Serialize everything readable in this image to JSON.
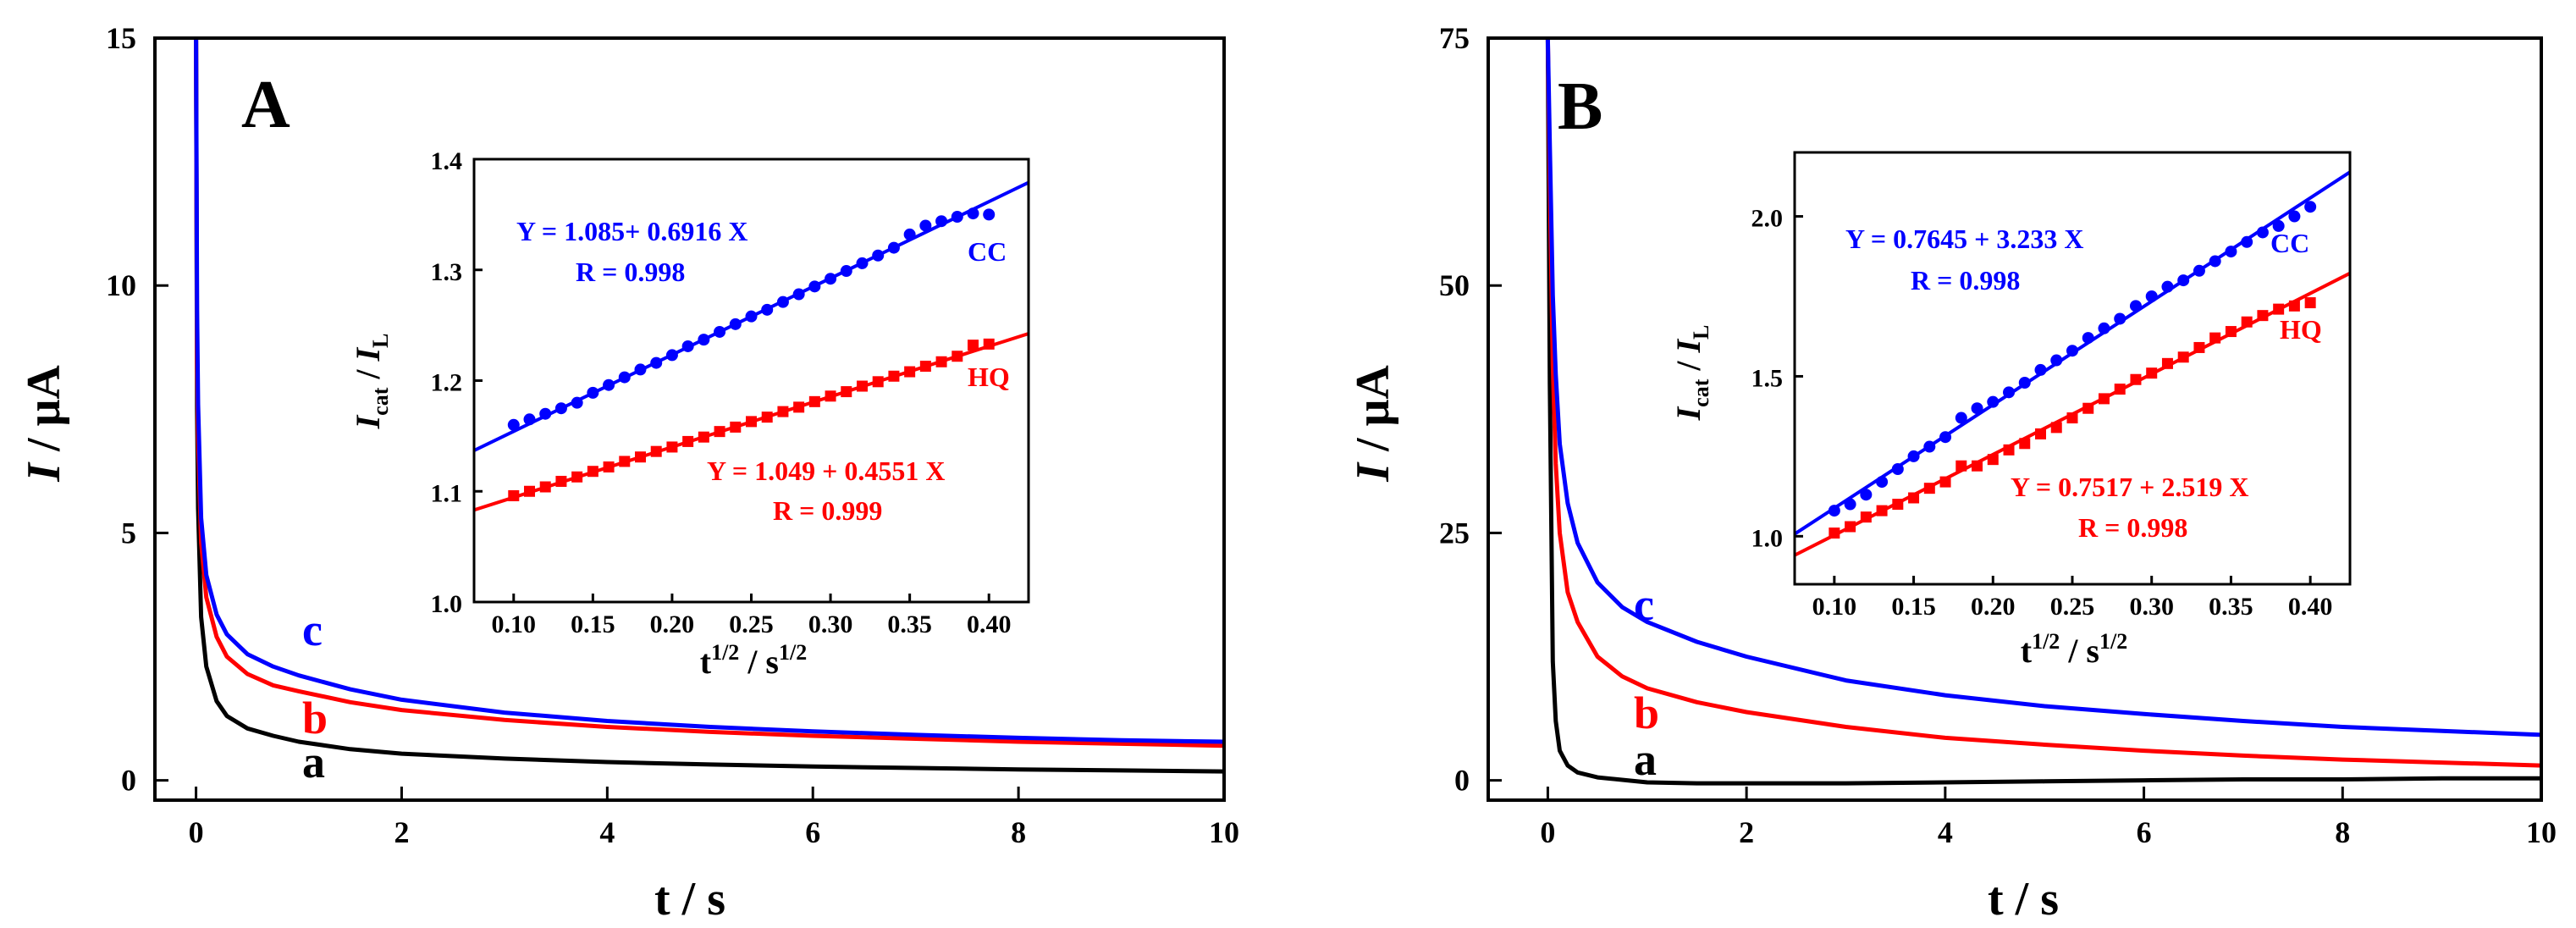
{
  "colors": {
    "a": "#000000",
    "b": "#ff0000",
    "c": "#0000ff",
    "axis": "#000000",
    "CC": "#0000ff",
    "HQ": "#ff0000"
  },
  "chart_data": [
    {
      "panel": "A",
      "type": "line",
      "xlabel": "t / s",
      "ylabel_i": "I",
      "ylabel_rest": " / μA",
      "xlim": [
        -0.4,
        10
      ],
      "ylim": [
        -0.4,
        15
      ],
      "xticks": [
        0,
        2,
        4,
        6,
        8,
        10
      ],
      "xtick_labels": [
        "0",
        "2",
        "4",
        "6",
        "8",
        "10"
      ],
      "yticks": [
        0,
        5,
        10,
        15
      ],
      "ytick_labels": [
        "0",
        "5",
        "10",
        "15"
      ],
      "series": [
        {
          "name": "a",
          "label": "a",
          "x": [
            0.0,
            0.01,
            0.02,
            0.05,
            0.1,
            0.2,
            0.3,
            0.5,
            0.75,
            1,
            1.5,
            2,
            3,
            4,
            5,
            6,
            7,
            8,
            9,
            10
          ],
          "y": [
            15,
            7.5,
            5.5,
            3.3,
            2.3,
            1.6,
            1.3,
            1.05,
            0.9,
            0.78,
            0.63,
            0.54,
            0.44,
            0.37,
            0.32,
            0.28,
            0.25,
            0.22,
            0.2,
            0.18
          ]
        },
        {
          "name": "b",
          "label": "b",
          "x": [
            0.0,
            0.01,
            0.02,
            0.05,
            0.1,
            0.2,
            0.3,
            0.5,
            0.75,
            1,
            1.5,
            2,
            3,
            4,
            5,
            6,
            7,
            8,
            9,
            10
          ],
          "y": [
            15,
            8.5,
            6.9,
            4.8,
            3.7,
            2.9,
            2.5,
            2.15,
            1.92,
            1.8,
            1.58,
            1.42,
            1.22,
            1.08,
            0.98,
            0.9,
            0.84,
            0.78,
            0.74,
            0.7
          ]
        },
        {
          "name": "c",
          "label": "c",
          "x": [
            0.0,
            0.01,
            0.02,
            0.05,
            0.1,
            0.2,
            0.3,
            0.5,
            0.75,
            1,
            1.5,
            2,
            3,
            4,
            5,
            6,
            7,
            8,
            9,
            10
          ],
          "y": [
            15,
            9.5,
            7.6,
            5.3,
            4.15,
            3.35,
            2.95,
            2.55,
            2.3,
            2.12,
            1.84,
            1.63,
            1.37,
            1.2,
            1.08,
            0.99,
            0.92,
            0.86,
            0.81,
            0.78
          ]
        }
      ],
      "inset": {
        "type": "scatter",
        "xlabel_base": "t",
        "xlabel_sup1": "1/2",
        "xlabel_mid": " / s",
        "xlabel_sup2": "1/2",
        "ylabel_main": "I",
        "ylabel_sub1": "cat",
        "ylabel_sep": " / ",
        "ylabel_sub2": "L",
        "xlim": [
          0.075,
          0.425
        ],
        "ylim": [
          1.0,
          1.4
        ],
        "xticks": [
          0.1,
          0.15,
          0.2,
          0.25,
          0.3,
          0.35,
          0.4
        ],
        "xtick_labels": [
          "0.10",
          "0.15",
          "0.20",
          "0.25",
          "0.30",
          "0.35",
          "0.40"
        ],
        "yticks": [
          1.0,
          1.1,
          1.2,
          1.3,
          1.4
        ],
        "ytick_labels": [
          "1.0",
          "1.1",
          "1.2",
          "1.3",
          "1.4"
        ],
        "series": [
          {
            "name": "CC",
            "label": "CC",
            "marker": "circle",
            "x": [
              0.1,
              0.11,
              0.12,
              0.13,
              0.14,
              0.15,
              0.16,
              0.17,
              0.18,
              0.19,
              0.2,
              0.21,
              0.22,
              0.23,
              0.24,
              0.25,
              0.26,
              0.27,
              0.28,
              0.29,
              0.3,
              0.31,
              0.32,
              0.33,
              0.34,
              0.35,
              0.36,
              0.37,
              0.38,
              0.39,
              0.4
            ],
            "y": [
              1.16,
              1.165,
              1.17,
              1.175,
              1.18,
              1.189,
              1.196,
              1.203,
              1.21,
              1.216,
              1.223,
              1.231,
              1.237,
              1.244,
              1.251,
              1.258,
              1.264,
              1.271,
              1.278,
              1.285,
              1.292,
              1.299,
              1.306,
              1.313,
              1.32,
              1.332,
              1.34,
              1.344,
              1.348,
              1.351,
              1.35
            ],
            "fit_intercept": 1.085,
            "fit_slope": 0.6916,
            "equation": "Y = 1.085+ 0.6916 X",
            "r": "R = 0.998"
          },
          {
            "name": "HQ",
            "label": "HQ",
            "marker": "square",
            "x": [
              0.1,
              0.11,
              0.12,
              0.13,
              0.14,
              0.15,
              0.16,
              0.17,
              0.18,
              0.19,
              0.2,
              0.21,
              0.22,
              0.23,
              0.24,
              0.25,
              0.26,
              0.27,
              0.28,
              0.29,
              0.3,
              0.31,
              0.32,
              0.33,
              0.34,
              0.35,
              0.36,
              0.37,
              0.38,
              0.39,
              0.4
            ],
            "y": [
              1.096,
              1.1,
              1.104,
              1.109,
              1.113,
              1.118,
              1.122,
              1.127,
              1.131,
              1.136,
              1.14,
              1.145,
              1.149,
              1.154,
              1.158,
              1.163,
              1.167,
              1.172,
              1.176,
              1.181,
              1.186,
              1.19,
              1.195,
              1.199,
              1.204,
              1.208,
              1.213,
              1.217,
              1.222,
              1.232,
              1.233
            ],
            "fit_intercept": 1.049,
            "fit_slope": 0.4551,
            "equation": "Y = 1.049 + 0.4551 X",
            "r": "R = 0.999"
          }
        ]
      }
    },
    {
      "panel": "B",
      "type": "line",
      "xlabel": "t / s",
      "ylabel_i": "I",
      "ylabel_rest": " / μA",
      "xlim": [
        -0.6,
        10
      ],
      "ylim": [
        -2,
        75
      ],
      "xticks": [
        0,
        2,
        4,
        6,
        8,
        10
      ],
      "xtick_labels": [
        "0",
        "2",
        "4",
        "6",
        "8",
        "10"
      ],
      "yticks": [
        0,
        25,
        50,
        75
      ],
      "ytick_labels": [
        "0",
        "25",
        "50",
        "75"
      ],
      "series": [
        {
          "name": "a",
          "label": "a",
          "x": [
            0.0,
            0.02,
            0.05,
            0.08,
            0.12,
            0.2,
            0.3,
            0.5,
            0.8,
            1,
            1.5,
            2,
            3,
            4,
            5,
            6,
            7,
            8,
            9,
            10
          ],
          "y": [
            75,
            40,
            12,
            6,
            3,
            1.5,
            0.8,
            0.3,
            0.0,
            -0.2,
            -0.3,
            -0.3,
            -0.3,
            -0.2,
            -0.1,
            0.0,
            0.1,
            0.1,
            0.2,
            0.2
          ]
        },
        {
          "name": "b",
          "label": "b",
          "x": [
            0.0,
            0.02,
            0.05,
            0.08,
            0.12,
            0.2,
            0.3,
            0.5,
            0.75,
            1,
            1.5,
            2,
            3,
            4,
            5,
            6,
            7,
            8,
            9,
            10
          ],
          "y": [
            75,
            60,
            42,
            32,
            25,
            19,
            16,
            12.5,
            10.5,
            9.3,
            7.9,
            6.9,
            5.4,
            4.3,
            3.6,
            3.0,
            2.5,
            2.1,
            1.8,
            1.5
          ]
        },
        {
          "name": "c",
          "label": "c",
          "x": [
            0.0,
            0.02,
            0.05,
            0.08,
            0.12,
            0.2,
            0.3,
            0.5,
            0.75,
            1,
            1.5,
            2,
            3,
            4,
            5,
            6,
            7,
            8,
            9,
            10
          ],
          "y": [
            75,
            64,
            49,
            41,
            34,
            28,
            24,
            20,
            17.5,
            16,
            14,
            12.5,
            10.1,
            8.6,
            7.5,
            6.7,
            6.0,
            5.4,
            5.0,
            4.6
          ]
        }
      ],
      "inset": {
        "type": "scatter",
        "xlabel_base": "t",
        "xlabel_sup1": "1/2",
        "xlabel_mid": " / s",
        "xlabel_sup2": "1/2",
        "ylabel_main": "I",
        "ylabel_sub1": "cat",
        "ylabel_sep": " / ",
        "ylabel_sub2": "L",
        "xlim": [
          0.075,
          0.425
        ],
        "ylim": [
          0.85,
          2.2
        ],
        "xticks": [
          0.1,
          0.15,
          0.2,
          0.25,
          0.3,
          0.35,
          0.4
        ],
        "xtick_labels": [
          "0.10",
          "0.15",
          "0.20",
          "0.25",
          "0.30",
          "0.35",
          "0.40"
        ],
        "yticks": [
          1.0,
          1.5,
          2.0
        ],
        "ytick_labels": [
          "1.0",
          "1.5",
          "2.0"
        ],
        "series": [
          {
            "name": "CC",
            "label": "CC",
            "marker": "circle",
            "x": [
              0.1,
              0.11,
              0.12,
              0.13,
              0.14,
              0.15,
              0.16,
              0.17,
              0.18,
              0.19,
              0.2,
              0.21,
              0.22,
              0.23,
              0.24,
              0.25,
              0.26,
              0.27,
              0.28,
              0.29,
              0.3,
              0.31,
              0.32,
              0.33,
              0.34,
              0.35,
              0.36,
              0.37,
              0.38,
              0.39,
              0.4
            ],
            "y": [
              1.08,
              1.1,
              1.13,
              1.17,
              1.21,
              1.25,
              1.28,
              1.31,
              1.37,
              1.4,
              1.42,
              1.45,
              1.48,
              1.52,
              1.55,
              1.58,
              1.62,
              1.65,
              1.68,
              1.72,
              1.75,
              1.78,
              1.8,
              1.83,
              1.86,
              1.89,
              1.92,
              1.95,
              1.97,
              2.0,
              2.03
            ],
            "fit_intercept": 0.7645,
            "fit_slope": 3.233,
            "equation": "Y = 0.7645 + 3.233 X",
            "r": "R = 0.998"
          },
          {
            "name": "HQ",
            "label": "HQ",
            "marker": "square",
            "x": [
              0.1,
              0.11,
              0.12,
              0.13,
              0.14,
              0.15,
              0.16,
              0.17,
              0.18,
              0.19,
              0.2,
              0.21,
              0.22,
              0.23,
              0.24,
              0.25,
              0.26,
              0.27,
              0.28,
              0.29,
              0.3,
              0.31,
              0.32,
              0.33,
              0.34,
              0.35,
              0.36,
              0.37,
              0.38,
              0.39,
              0.4
            ],
            "y": [
              1.01,
              1.03,
              1.06,
              1.08,
              1.1,
              1.12,
              1.15,
              1.17,
              1.22,
              1.22,
              1.24,
              1.27,
              1.29,
              1.32,
              1.34,
              1.37,
              1.4,
              1.43,
              1.46,
              1.49,
              1.51,
              1.54,
              1.56,
              1.59,
              1.62,
              1.64,
              1.67,
              1.69,
              1.71,
              1.72,
              1.73
            ],
            "fit_intercept": 0.7517,
            "fit_slope": 2.519,
            "equation": "Y = 0.7517 + 2.519 X",
            "r": "R = 0.998"
          }
        ]
      }
    }
  ]
}
